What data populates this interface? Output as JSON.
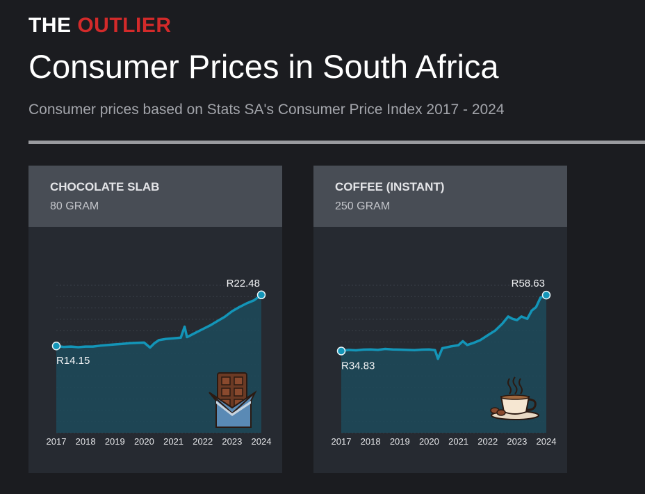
{
  "brand": {
    "part1": "THE",
    "part2": "OUTLIER"
  },
  "header": {
    "title": "Consumer Prices in South Africa",
    "subtitle": "Consumer prices based on Stats SA's Consumer Price Index 2017 - 2024"
  },
  "colors": {
    "line": "#1395b8",
    "area": "#1d4a5a",
    "accent": "#d32a2a"
  },
  "chart_data": [
    {
      "type": "area",
      "product": "CHOCOLATE SLAB",
      "unit": "80 GRAM",
      "icon": "chocolate-bar-icon",
      "start_label": "R14.15",
      "end_label": "R22.48",
      "xlim": [
        2017,
        2024
      ],
      "x_ticks": [
        "2017",
        "2018",
        "2019",
        "2020",
        "2021",
        "2022",
        "2023",
        "2024"
      ],
      "ylim": [
        0,
        24.5
      ],
      "x": [
        2017.0,
        2017.25,
        2017.5,
        2017.75,
        2018.0,
        2018.25,
        2018.5,
        2018.75,
        2019.0,
        2019.25,
        2019.5,
        2019.75,
        2020.0,
        2020.2,
        2020.35,
        2020.5,
        2020.75,
        2021.0,
        2021.25,
        2021.38,
        2021.46,
        2021.55,
        2021.75,
        2022.0,
        2022.25,
        2022.5,
        2022.75,
        2023.0,
        2023.25,
        2023.5,
        2023.75,
        2024.0
      ],
      "values": [
        14.15,
        14.0,
        14.05,
        13.95,
        14.05,
        14.05,
        14.2,
        14.3,
        14.4,
        14.5,
        14.6,
        14.65,
        14.7,
        13.9,
        14.6,
        15.1,
        15.3,
        15.4,
        15.5,
        17.3,
        15.6,
        15.8,
        16.3,
        16.9,
        17.5,
        18.2,
        18.9,
        19.8,
        20.5,
        21.1,
        21.6,
        22.48
      ]
    },
    {
      "type": "area",
      "product": "COFFEE (INSTANT)",
      "unit": "250 GRAM",
      "icon": "coffee-cup-icon",
      "start_label": "R34.83",
      "end_label": "R58.63",
      "xlim": [
        2017,
        2024
      ],
      "x_ticks": [
        "2017",
        "2018",
        "2019",
        "2020",
        "2021",
        "2022",
        "2023",
        "2024"
      ],
      "ylim": [
        0,
        64
      ],
      "x": [
        2017.0,
        2017.25,
        2017.5,
        2017.75,
        2018.0,
        2018.25,
        2018.5,
        2018.75,
        2019.0,
        2019.25,
        2019.5,
        2019.75,
        2020.0,
        2020.2,
        2020.3,
        2020.45,
        2020.75,
        2021.0,
        2021.15,
        2021.3,
        2021.5,
        2021.75,
        2022.0,
        2022.25,
        2022.5,
        2022.7,
        2022.85,
        2023.0,
        2023.15,
        2023.35,
        2023.5,
        2023.65,
        2023.8,
        2024.0
      ],
      "values": [
        34.83,
        35.3,
        35.1,
        35.4,
        35.5,
        35.3,
        35.7,
        35.5,
        35.4,
        35.3,
        35.2,
        35.4,
        35.5,
        35.2,
        31.5,
        36.0,
        36.8,
        37.3,
        39.0,
        37.4,
        38.2,
        39.5,
        41.5,
        43.5,
        46.5,
        49.5,
        48.5,
        48.0,
        49.5,
        48.5,
        52.0,
        53.5,
        57.5,
        58.63
      ]
    }
  ]
}
